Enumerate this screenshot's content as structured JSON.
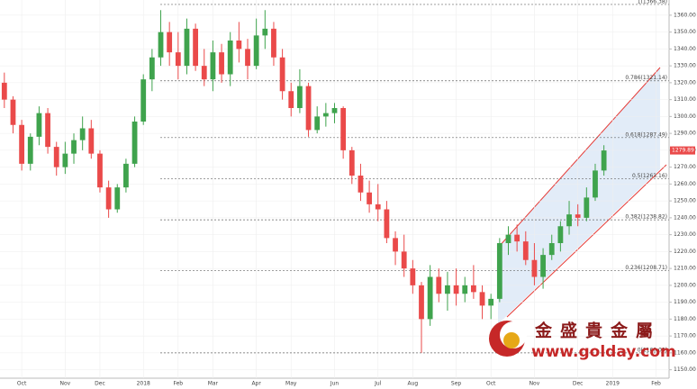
{
  "chart_data": {
    "type": "candlestick",
    "categories": [
      null,
      null,
      "Oct",
      null,
      null,
      null,
      null,
      "Nov",
      null,
      null,
      null,
      "Dec",
      null,
      null,
      null,
      null,
      "2018",
      null,
      null,
      null,
      "Feb",
      null,
      null,
      null,
      "Mar",
      null,
      null,
      null,
      null,
      "Apr",
      null,
      null,
      null,
      "May",
      null,
      null,
      null,
      null,
      "Jun",
      null,
      null,
      null,
      null,
      "Jul",
      null,
      null,
      null,
      "Aug",
      null,
      null,
      null,
      null,
      "Sep",
      null,
      null,
      null,
      "Oct",
      null,
      null,
      null,
      null,
      "Nov",
      null,
      null,
      null,
      null,
      "Dec",
      null,
      null,
      null,
      "2019",
      null,
      null,
      null,
      null,
      "Feb",
      null
    ],
    "open": [
      1320,
      1310,
      1295,
      1272,
      1288,
      1302,
      1282,
      1270,
      1278,
      1286,
      1293,
      1278,
      1258,
      1245,
      1258,
      1272,
      1297,
      1322,
      1335,
      1350,
      1338,
      1330,
      1352,
      1330,
      1322,
      1338,
      1325,
      1345,
      1340,
      1330,
      1348,
      1352,
      1335,
      1315,
      1305,
      1318,
      1292,
      1300,
      1302,
      1305,
      1280,
      1265,
      1255,
      1248,
      1245,
      1228,
      1220,
      1210,
      1200,
      1180,
      1205,
      1195,
      1200,
      1195,
      1200,
      1196,
      1188,
      1192,
      1225,
      1230,
      1226,
      1215,
      1205,
      1218,
      1225,
      1235,
      1242,
      1240,
      1252,
      1268,
      null,
      null,
      null,
      null,
      null,
      null,
      null
    ],
    "high": [
      1326,
      1312,
      1298,
      1290,
      1306,
      1305,
      1285,
      1285,
      1290,
      1300,
      1298,
      1280,
      1262,
      1260,
      1275,
      1300,
      1325,
      1340,
      1363,
      1356,
      1350,
      1358,
      1355,
      1340,
      1345,
      1343,
      1350,
      1356,
      1346,
      1358,
      1363,
      1356,
      1340,
      1320,
      1328,
      1320,
      1306,
      1308,
      1308,
      1306,
      1282,
      1272,
      1262,
      1260,
      1250,
      1232,
      1230,
      1215,
      1202,
      1212,
      1210,
      1208,
      1210,
      1205,
      1212,
      1200,
      1195,
      1228,
      1235,
      1236,
      1232,
      1225,
      1222,
      1230,
      1238,
      1250,
      1248,
      1258,
      1272,
      1283,
      null,
      null,
      null,
      null,
      null,
      null,
      null
    ],
    "low": [
      1305,
      1290,
      1268,
      1268,
      1283,
      1278,
      1265,
      1266,
      1272,
      1280,
      1275,
      1255,
      1240,
      1243,
      1255,
      1270,
      1295,
      1315,
      1330,
      1330,
      1322,
      1325,
      1327,
      1318,
      1315,
      1320,
      1318,
      1332,
      1322,
      1328,
      1340,
      1330,
      1310,
      1300,
      1302,
      1288,
      1290,
      1294,
      1296,
      1275,
      1260,
      1250,
      1243,
      1238,
      1225,
      1212,
      1205,
      1195,
      1160,
      1176,
      1190,
      1185,
      1188,
      1190,
      1192,
      1180,
      1180,
      1190,
      1218,
      1220,
      1212,
      1200,
      1198,
      1215,
      1220,
      1230,
      1235,
      1238,
      1250,
      1265,
      null,
      null,
      null,
      null,
      null,
      null,
      null
    ],
    "close": [
      1310,
      1295,
      1272,
      1288,
      1302,
      1282,
      1270,
      1278,
      1286,
      1293,
      1278,
      1258,
      1245,
      1258,
      1272,
      1297,
      1322,
      1335,
      1350,
      1338,
      1330,
      1352,
      1330,
      1322,
      1338,
      1325,
      1345,
      1340,
      1330,
      1348,
      1352,
      1335,
      1315,
      1305,
      1318,
      1292,
      1300,
      1302,
      1305,
      1280,
      1265,
      1255,
      1248,
      1245,
      1228,
      1220,
      1210,
      1200,
      1180,
      1205,
      1195,
      1200,
      1195,
      1200,
      1196,
      1188,
      1192,
      1225,
      1230,
      1226,
      1215,
      1205,
      1218,
      1225,
      1235,
      1242,
      1240,
      1252,
      1268,
      1279.89,
      null,
      null,
      null,
      null,
      null,
      null,
      null
    ],
    "up_color": "#3fa34d",
    "down_color": "#ea4a4a",
    "ylim": [
      1145,
      1369
    ],
    "yticks": [
      {
        "value": 1150,
        "label": "1150.00"
      },
      {
        "value": 1160,
        "label": "1160.00"
      },
      {
        "value": 1170,
        "label": "1170.00"
      },
      {
        "value": 1180,
        "label": "1180.00"
      },
      {
        "value": 1190,
        "label": "1190.00"
      },
      {
        "value": 1200,
        "label": "1200.00"
      },
      {
        "value": 1210,
        "label": "1210.00"
      },
      {
        "value": 1220,
        "label": "1220.00"
      },
      {
        "value": 1230,
        "label": "1230.00"
      },
      {
        "value": 1240,
        "label": "1240.00"
      },
      {
        "value": 1250,
        "label": "1250.00"
      },
      {
        "value": 1260,
        "label": "1260.00"
      },
      {
        "value": 1270,
        "label": "1270.00"
      },
      {
        "value": 1280,
        "label": "1280.00"
      },
      {
        "value": 1290,
        "label": "1290.00"
      },
      {
        "value": 1300,
        "label": "1300.00"
      },
      {
        "value": 1310,
        "label": "1310.00"
      },
      {
        "value": 1320,
        "label": "1320.00"
      },
      {
        "value": 1330,
        "label": "1330.00"
      },
      {
        "value": 1340,
        "label": "1340.00"
      },
      {
        "value": 1350,
        "label": "1350.00"
      },
      {
        "value": 1360,
        "label": "1360.00"
      }
    ],
    "grid": true,
    "fib_levels": {
      "values": [
        1366.38,
        1321.14,
        1287.49,
        1263.16,
        1238.82,
        1208.71,
        1160.0
      ],
      "value_labels": [
        "1(1366.38)",
        "0.786(1321.14)",
        "0.618(1287.49)",
        "0.5(1263.16)",
        "0.382(1238.82)",
        "0.236(1208.71)",
        "0(1160.00)"
      ]
    },
    "watermark": {
      "name": [
        "金",
        "盛",
        "貴",
        "金",
        "屬"
      ],
      "url": "www.golday.com"
    }
  }
}
